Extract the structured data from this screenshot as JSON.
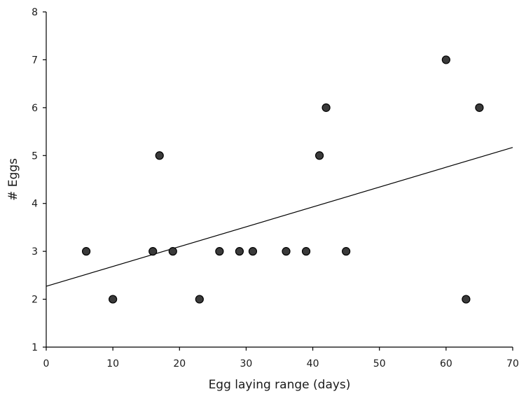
{
  "chart_data": {
    "type": "scatter",
    "title": "",
    "xlabel": "Egg laying range (days)",
    "ylabel": "# Eggs",
    "xlim": [
      0,
      70
    ],
    "ylim": [
      1,
      8
    ],
    "xticks": [
      0,
      10,
      20,
      30,
      40,
      50,
      60,
      70
    ],
    "yticks": [
      1,
      2,
      3,
      4,
      5,
      6,
      7,
      8
    ],
    "grid": false,
    "legend": "none",
    "marker_color": "#3a3a3a",
    "points": [
      {
        "x": 6,
        "y": 3
      },
      {
        "x": 10,
        "y": 2
      },
      {
        "x": 16,
        "y": 3
      },
      {
        "x": 17,
        "y": 5
      },
      {
        "x": 19,
        "y": 3
      },
      {
        "x": 23,
        "y": 2
      },
      {
        "x": 26,
        "y": 3
      },
      {
        "x": 29,
        "y": 3
      },
      {
        "x": 31,
        "y": 3
      },
      {
        "x": 36,
        "y": 3
      },
      {
        "x": 39,
        "y": 3
      },
      {
        "x": 41,
        "y": 5
      },
      {
        "x": 42,
        "y": 6
      },
      {
        "x": 45,
        "y": 3
      },
      {
        "x": 60,
        "y": 7
      },
      {
        "x": 63,
        "y": 2
      },
      {
        "x": 65,
        "y": 6
      }
    ],
    "trendline": {
      "x0": 0,
      "y0": 2.27,
      "x1": 70,
      "y1": 5.17
    }
  }
}
